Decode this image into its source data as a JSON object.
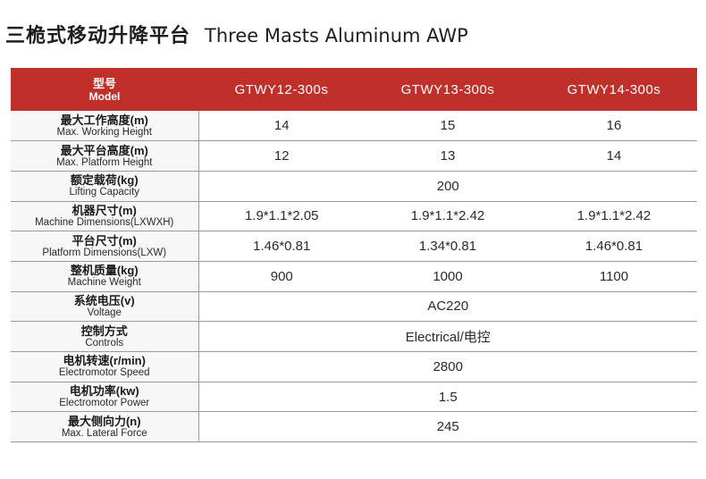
{
  "title": {
    "zh": "三桅式移动升降平台",
    "en": "Three Masts Aluminum AWP"
  },
  "header": {
    "label_zh": "型号",
    "label_en": "Model",
    "models": [
      "GTWY12-300s",
      "GTWY13-300s",
      "GTWY14-300s"
    ]
  },
  "rows": [
    {
      "zh": "最大工作高度(m)",
      "en": "Max. Working Height",
      "values": [
        "14",
        "15",
        "16"
      ]
    },
    {
      "zh": "最大平台高度(m)",
      "en": "Max. Platform Height",
      "values": [
        "12",
        "13",
        "14"
      ]
    },
    {
      "zh": "额定载荷(kg)",
      "en": "Lifting Capacity",
      "shared": "200"
    },
    {
      "zh": "机器尺寸(m)",
      "en": "Machine Dimensions(LXWXH)",
      "values": [
        "1.9*1.1*2.05",
        "1.9*1.1*2.42",
        "1.9*1.1*2.42"
      ]
    },
    {
      "zh": "平台尺寸(m)",
      "en": "Platform Dimensions(LXW)",
      "values": [
        "1.46*0.81",
        "1.34*0.81",
        "1.46*0.81"
      ]
    },
    {
      "zh": "整机质量(kg)",
      "en": "Machine Weight",
      "values": [
        "900",
        "1000",
        "1100"
      ]
    },
    {
      "zh": "系统电压(v)",
      "en": "Voltage",
      "shared": "AC220"
    },
    {
      "zh": "控制方式",
      "en": "Controls",
      "shared": "Electrical/电控"
    },
    {
      "zh": "电机转速(r/min)",
      "en": "Electromotor Speed",
      "shared": "2800"
    },
    {
      "zh": "电机功率(kw)",
      "en": "Electromotor Power",
      "shared": "1.5"
    },
    {
      "zh": "最大侧向力(n)",
      "en": "Max. Lateral Force",
      "shared": "245"
    }
  ],
  "colors": {
    "header_bg": "#c0302a",
    "header_text": "#ffffff",
    "rule": "#9a9a9a"
  }
}
